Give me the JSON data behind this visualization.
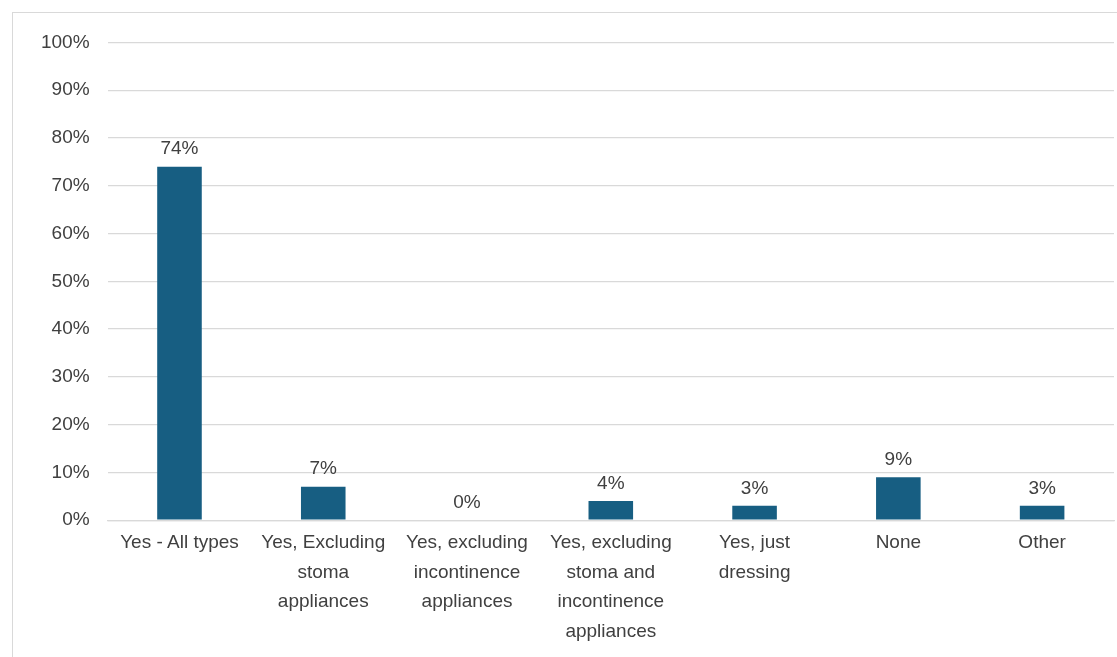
{
  "chart_data": {
    "type": "bar",
    "categories": [
      "Yes - All types",
      "Yes, Excluding stoma appliances",
      "Yes, excluding incontinence appliances",
      "Yes, excluding stoma and incontinence appliances",
      "Yes, just dressing",
      "None",
      "Other"
    ],
    "values": [
      74,
      7,
      0,
      4,
      3,
      9,
      3
    ],
    "value_labels": [
      "74%",
      "7%",
      "0%",
      "4%",
      "3%",
      "9%",
      "3%"
    ],
    "color": "#175e82",
    "ylim": [
      0,
      100
    ],
    "yticks": [
      {
        "value": 0,
        "label": "0%"
      },
      {
        "value": 10,
        "label": "10%"
      },
      {
        "value": 20,
        "label": "20%"
      },
      {
        "value": 30,
        "label": "30%"
      },
      {
        "value": 40,
        "label": "40%"
      },
      {
        "value": 50,
        "label": "50%"
      },
      {
        "value": 60,
        "label": "60%"
      },
      {
        "value": 70,
        "label": "70%"
      },
      {
        "value": 80,
        "label": "80%"
      },
      {
        "value": 90,
        "label": "90%"
      },
      {
        "value": 100,
        "label": "100%"
      }
    ],
    "grid": "y",
    "legend": false
  }
}
